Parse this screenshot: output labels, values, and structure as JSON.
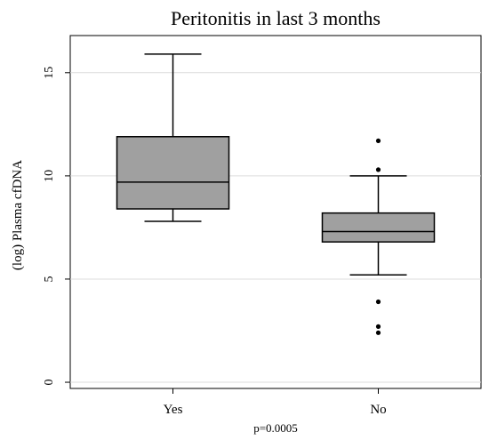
{
  "chart_data": {
    "type": "box",
    "title": "Peritonitis in last 3 months",
    "xlabel": "",
    "ylabel": "(log) Plasma cfDNA",
    "ylim": [
      -0.3,
      16.8
    ],
    "yticks": [
      0,
      5,
      10,
      15
    ],
    "grid": true,
    "categories": [
      "Yes",
      "No"
    ],
    "boxes": [
      {
        "category": "Yes",
        "whisker_low": 7.8,
        "q1": 8.4,
        "median": 9.7,
        "q3": 11.9,
        "whisker_high": 15.9,
        "outliers": []
      },
      {
        "category": "No",
        "whisker_low": 5.2,
        "q1": 6.8,
        "median": 7.3,
        "q3": 8.2,
        "whisker_high": 10.0,
        "outliers": [
          11.7,
          10.3,
          3.9,
          2.7,
          2.4
        ]
      }
    ],
    "box_color": "#a0a0a0",
    "footnote": "p=0.0005"
  }
}
